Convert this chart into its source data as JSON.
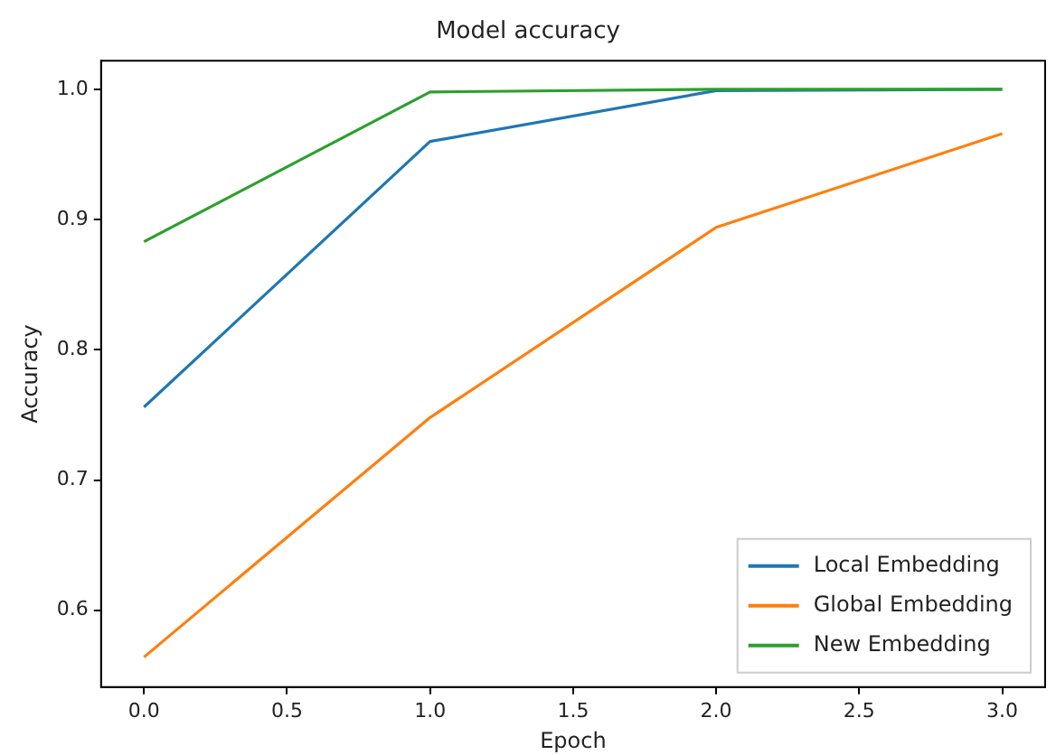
{
  "chart_data": {
    "type": "line",
    "title": "Model accuracy",
    "xlabel": "Epoch",
    "ylabel": "Accuracy",
    "x": [
      0,
      1,
      2,
      3
    ],
    "series": [
      {
        "name": "Local Embedding",
        "color": "#1f77b4",
        "values": [
          0.756,
          0.96,
          0.999,
          1.0
        ]
      },
      {
        "name": "Global Embedding",
        "color": "#ff7f0e",
        "values": [
          0.564,
          0.748,
          0.894,
          0.966
        ]
      },
      {
        "name": "New Embedding",
        "color": "#2ca02c",
        "values": [
          0.883,
          0.998,
          1.0,
          1.0
        ]
      }
    ],
    "xlim": [
      -0.15,
      3.15
    ],
    "ylim": [
      0.541,
      1.022
    ],
    "xticks": [
      {
        "value": 0,
        "label": "0.0"
      },
      {
        "value": 0.5,
        "label": "0.5"
      },
      {
        "value": 1,
        "label": "1.0"
      },
      {
        "value": 1.5,
        "label": "1.5"
      },
      {
        "value": 2,
        "label": "2.0"
      },
      {
        "value": 2.5,
        "label": "2.5"
      },
      {
        "value": 3,
        "label": "3.0"
      }
    ],
    "yticks": [
      0.6,
      0.7,
      0.8,
      0.9,
      {
        "value": 1,
        "label": "1.0"
      }
    ],
    "grid": false,
    "legend": "bottom right",
    "marker": "none",
    "line_style": "solid"
  }
}
